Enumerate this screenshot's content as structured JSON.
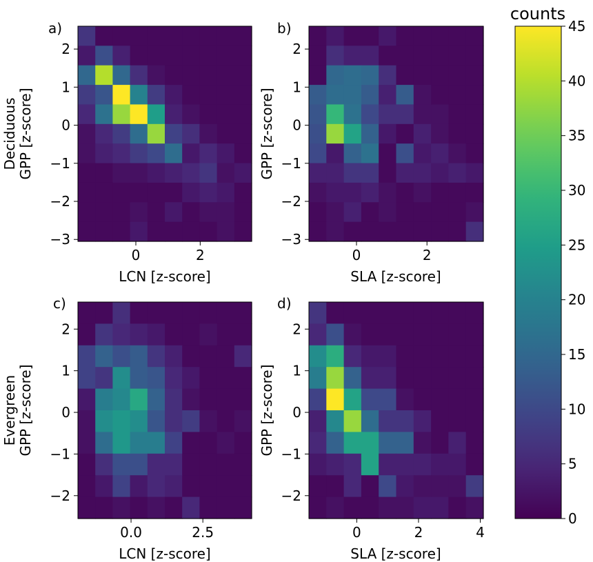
{
  "colorbar": {
    "title": "counts",
    "range": [
      0,
      45
    ],
    "ticks": [
      "0",
      "5",
      "10",
      "15",
      "20",
      "25",
      "30",
      "35",
      "40",
      "45"
    ],
    "colormap": "viridis"
  },
  "chart_data": [
    {
      "type": "heatmap",
      "panel_label": "a)",
      "title": "",
      "xlabel": "LCN [z-score]",
      "ylabel_lines": [
        "Deciduous",
        "GPP [z-score]"
      ],
      "xlim": [
        -1.8,
        3.6
      ],
      "ylim": [
        -3.05,
        2.6
      ],
      "xticks": [
        {
          "v": 0,
          "label": "0"
        },
        {
          "v": 2,
          "label": "2"
        }
      ],
      "yticks": [
        {
          "v": 2,
          "label": "2"
        },
        {
          "v": 1,
          "label": "1"
        },
        {
          "v": 0,
          "label": "0"
        },
        {
          "v": -1,
          "label": "−1"
        },
        {
          "v": -2,
          "label": "−2"
        },
        {
          "v": -3,
          "label": "−3"
        }
      ],
      "z": [
        [
          7,
          1,
          1,
          1,
          1,
          1,
          1,
          1,
          1,
          1
        ],
        [
          3,
          11,
          4,
          1,
          1,
          1,
          1,
          1,
          1,
          1
        ],
        [
          15,
          40,
          15,
          6,
          2,
          1,
          1,
          1,
          1,
          1
        ],
        [
          8,
          12,
          45,
          20,
          8,
          3,
          1,
          1,
          1,
          1
        ],
        [
          5,
          17,
          38,
          45,
          25,
          4,
          2,
          1,
          1,
          1
        ],
        [
          2,
          5,
          8,
          16,
          38,
          9,
          6,
          2,
          1,
          1
        ],
        [
          2,
          4,
          5,
          8,
          10,
          16,
          3,
          5,
          3,
          1
        ],
        [
          1,
          1,
          2,
          2,
          3,
          4,
          5,
          7,
          2,
          3
        ],
        [
          1,
          1,
          1,
          1,
          1,
          1,
          3,
          4,
          3,
          1
        ],
        [
          1,
          1,
          1,
          2,
          1,
          3,
          1,
          2,
          2,
          1
        ],
        [
          1,
          1,
          1,
          3,
          1,
          1,
          1,
          1,
          2,
          1
        ]
      ]
    },
    {
      "type": "heatmap",
      "panel_label": "b)",
      "title": "",
      "xlabel": "SLA [z-score]",
      "ylabel_lines": [
        "GPP [z-score]"
      ],
      "xlim": [
        -1.35,
        3.6
      ],
      "ylim": [
        -3.05,
        2.6
      ],
      "xticks": [
        {
          "v": 0,
          "label": "0"
        },
        {
          "v": 2,
          "label": "2"
        }
      ],
      "yticks": [
        {
          "v": 2,
          "label": "2"
        },
        {
          "v": 1,
          "label": "1"
        },
        {
          "v": 0,
          "label": "0"
        },
        {
          "v": -1,
          "label": "−1"
        },
        {
          "v": -2,
          "label": "−2"
        },
        {
          "v": -3,
          "label": "−3"
        }
      ],
      "z": [
        [
          1,
          3,
          1,
          1,
          3,
          1,
          1,
          1,
          1,
          1
        ],
        [
          1,
          6,
          4,
          4,
          1,
          1,
          1,
          1,
          1,
          1
        ],
        [
          1,
          15,
          16,
          15,
          6,
          1,
          1,
          1,
          1,
          1
        ],
        [
          13,
          16,
          16,
          13,
          4,
          13,
          2,
          1,
          1,
          1
        ],
        [
          12,
          30,
          17,
          10,
          6,
          6,
          2,
          2,
          1,
          1
        ],
        [
          11,
          38,
          26,
          14,
          3,
          1,
          4,
          2,
          1,
          1
        ],
        [
          10,
          3,
          14,
          17,
          1,
          11,
          3,
          4,
          2,
          1
        ],
        [
          4,
          4,
          7,
          7,
          1,
          4,
          4,
          3,
          4,
          3
        ],
        [
          2,
          3,
          3,
          4,
          2,
          1,
          2,
          1,
          1,
          1
        ],
        [
          1,
          2,
          4,
          1,
          2,
          1,
          1,
          1,
          1,
          2
        ],
        [
          1,
          2,
          1,
          1,
          1,
          1,
          1,
          1,
          1,
          6
        ]
      ]
    },
    {
      "type": "heatmap",
      "panel_label": "c)",
      "title": "",
      "xlabel": "LCN [z-score]",
      "ylabel_lines": [
        "Evergreen",
        "GPP [z-score]"
      ],
      "xlim": [
        -1.85,
        4.2
      ],
      "ylim": [
        -2.55,
        2.65
      ],
      "xticks": [
        {
          "v": 0,
          "label": "0.0"
        },
        {
          "v": 2.5,
          "label": "2.5"
        }
      ],
      "yticks": [
        {
          "v": 2,
          "label": "2"
        },
        {
          "v": 1,
          "label": "1"
        },
        {
          "v": 0,
          "label": "0"
        },
        {
          "v": -1,
          "label": "−1"
        },
        {
          "v": -2,
          "label": "−2"
        }
      ],
      "z": [
        [
          1,
          1,
          6,
          1,
          1,
          1,
          1,
          1,
          1,
          1
        ],
        [
          1,
          7,
          5,
          4,
          3,
          1,
          1,
          2,
          1,
          1
        ],
        [
          9,
          14,
          11,
          13,
          7,
          4,
          1,
          1,
          1,
          5
        ],
        [
          9,
          7,
          22,
          13,
          12,
          5,
          3,
          1,
          1,
          1
        ],
        [
          3,
          19,
          21,
          27,
          14,
          6,
          2,
          1,
          1,
          1
        ],
        [
          2,
          22,
          24,
          22,
          12,
          6,
          8,
          2,
          1,
          2
        ],
        [
          2,
          16,
          24,
          19,
          19,
          9,
          1,
          1,
          2,
          1
        ],
        [
          1,
          6,
          11,
          11,
          5,
          5,
          1,
          1,
          1,
          1
        ],
        [
          1,
          3,
          9,
          3,
          5,
          4,
          1,
          1,
          1,
          1
        ],
        [
          1,
          1,
          2,
          1,
          2,
          1,
          5,
          1,
          1,
          1
        ]
      ]
    },
    {
      "type": "heatmap",
      "panel_label": "d)",
      "title": "",
      "xlabel": "SLA [z-score]",
      "ylabel_lines": [
        "GPP [z-score]"
      ],
      "xlim": [
        -1.55,
        4.1
      ],
      "ylim": [
        -2.55,
        2.65
      ],
      "xticks": [
        {
          "v": 0,
          "label": "0"
        },
        {
          "v": 2,
          "label": "2"
        },
        {
          "v": 4,
          "label": "4"
        }
      ],
      "yticks": [
        {
          "v": 2,
          "label": "2"
        },
        {
          "v": 1,
          "label": "1"
        },
        {
          "v": 0,
          "label": "0"
        },
        {
          "v": -1,
          "label": "−1"
        },
        {
          "v": -2,
          "label": "−2"
        }
      ],
      "z": [
        [
          7,
          1,
          1,
          1,
          1,
          1,
          1,
          1,
          1,
          1
        ],
        [
          5,
          11,
          2,
          1,
          1,
          1,
          1,
          1,
          1,
          1
        ],
        [
          22,
          28,
          5,
          3,
          3,
          1,
          1,
          1,
          1,
          1
        ],
        [
          19,
          38,
          14,
          4,
          4,
          1,
          1,
          1,
          1,
          1
        ],
        [
          9,
          45,
          26,
          10,
          10,
          2,
          1,
          1,
          1,
          1
        ],
        [
          4,
          21,
          38,
          16,
          7,
          7,
          4,
          1,
          1,
          1
        ],
        [
          5,
          14,
          26,
          26,
          14,
          14,
          2,
          1,
          4,
          1
        ],
        [
          3,
          4,
          5,
          26,
          4,
          4,
          4,
          3,
          3,
          1
        ],
        [
          1,
          1,
          5,
          1,
          10,
          3,
          2,
          2,
          2,
          8
        ],
        [
          1,
          2,
          1,
          1,
          2,
          2,
          3,
          3,
          1,
          2
        ]
      ]
    }
  ]
}
